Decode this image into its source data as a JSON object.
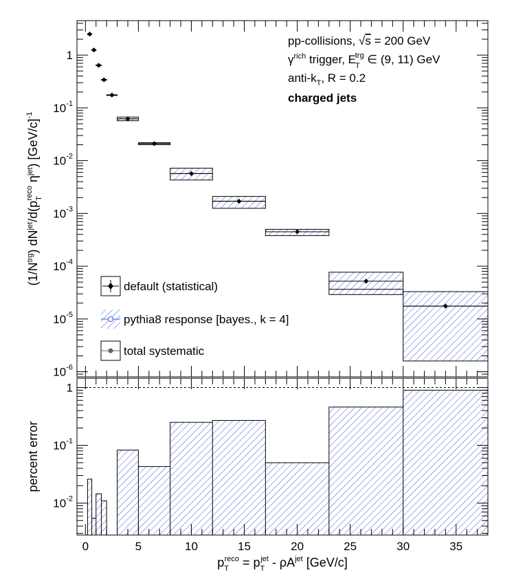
{
  "chart_data": [
    {
      "type": "scatter",
      "panel": "upper",
      "xlabel": "p_T^reco = p_T^jet - ρA^jet [GeV/c]",
      "ylabel": "(1/N^trg) dN^jet/d(p_T^reco η^jet) [GeV/c]^-1",
      "ylabel_parts": {
        "p1": "(1/N",
        "trg": "trg",
        "p2": ") dN",
        "jet1": "jet",
        "p3": "/d(p",
        "T": "T",
        "reco": "reco",
        "p4": " η",
        "jet2": "jet",
        "p5": ") [GeV/c]",
        "m1": "-1"
      },
      "xlim": [
        -0.8,
        38
      ],
      "ylim": [
        8e-07,
        4.5
      ],
      "yscale": "log",
      "yticks": [
        {
          "v": 1,
          "base": "1",
          "exp": ""
        },
        {
          "v": 0.1,
          "base": "10",
          "exp": "-1"
        },
        {
          "v": 0.01,
          "base": "10",
          "exp": "-2"
        },
        {
          "v": 0.001,
          "base": "10",
          "exp": "-3"
        },
        {
          "v": 0.0001,
          "base": "10",
          "exp": "-4"
        },
        {
          "v": 1e-05,
          "base": "10",
          "exp": "-5"
        },
        {
          "v": 1e-06,
          "base": "10",
          "exp": "-6"
        }
      ],
      "annotations": {
        "line1_a": "pp-collisions, ",
        "line1_sqrt": "√",
        "line1_s": "s",
        "line1_b": " = 200 GeV",
        "line2_gamma": "γ",
        "line2_rich": "rich",
        "line2_a": " trigger, E",
        "line2_T": "T",
        "line2_trg": "trg",
        "line2_b": " ∈ (9, 11) GeV",
        "line3_a": "anti-k",
        "line3_T": "T",
        "line3_b": ", R = 0.2",
        "line4": "charged jets"
      },
      "legend": {
        "placement": "bottom-left",
        "entries": [
          {
            "label": "default (statistical)"
          },
          {
            "label": "pythia8 response [bayes., k = 4]"
          },
          {
            "label": "total systematic"
          }
        ]
      },
      "points": [
        {
          "xlo": 0.2,
          "xhi": 0.6,
          "x": 0.4,
          "y": 2.5,
          "syslo": 2.45,
          "syshi": 2.55
        },
        {
          "xlo": 0.6,
          "xhi": 1.0,
          "x": 0.8,
          "y": 1.25,
          "syslo": 1.23,
          "syshi": 1.27
        },
        {
          "xlo": 1.0,
          "xhi": 1.5,
          "x": 1.25,
          "y": 0.64,
          "syslo": 0.63,
          "syshi": 0.65
        },
        {
          "xlo": 1.5,
          "xhi": 2.0,
          "x": 1.75,
          "y": 0.34,
          "syslo": 0.335,
          "syshi": 0.345
        },
        {
          "xlo": 2.0,
          "xhi": 3.0,
          "x": 2.5,
          "y": 0.175,
          "syslo": 0.173,
          "syshi": 0.177
        },
        {
          "xlo": 3.0,
          "xhi": 5.0,
          "x": 4.0,
          "y": 0.062,
          "syslo": 0.057,
          "syshi": 0.067
        },
        {
          "xlo": 5.0,
          "xhi": 8.0,
          "x": 6.5,
          "y": 0.021,
          "syslo": 0.0201,
          "syshi": 0.0219
        },
        {
          "xlo": 8.0,
          "xhi": 12.0,
          "x": 10.0,
          "y": 0.0057,
          "syslo": 0.0043,
          "syshi": 0.0072
        },
        {
          "xlo": 12.0,
          "xhi": 17.0,
          "x": 14.5,
          "y": 0.0017,
          "syslo": 0.00125,
          "syshi": 0.0021
        },
        {
          "xlo": 17.0,
          "xhi": 23.0,
          "x": 20.0,
          "y": 0.00045,
          "syslo": 0.00038,
          "syshi": 0.0005
        },
        {
          "xlo": 23.0,
          "xhi": 30.0,
          "x": 26.5,
          "y": 5.2e-05,
          "syslo": 2.9e-05,
          "syshi": 7.7e-05,
          "central": 3.65e-05
        },
        {
          "xlo": 30.0,
          "xhi": 38.0,
          "x": 34.0,
          "y": 1.75e-05,
          "syslo": 1.6e-06,
          "syshi": 3.3e-05
        }
      ]
    },
    {
      "type": "bar",
      "panel": "lower",
      "ylabel": "percent error",
      "xlabel_parts": {
        "p": "p",
        "T1": "T",
        "reco": "reco",
        "eq": " = p",
        "T2": "T",
        "jet": "jet",
        "rho": " - ρA",
        "jet2": "jet",
        "unit": " [GeV/c]"
      },
      "xlim": [
        -0.8,
        38
      ],
      "ylim": [
        0.0028,
        1.45
      ],
      "yscale": "log",
      "xticks": [
        {
          "v": 0,
          "label": "0"
        },
        {
          "v": 5,
          "label": "5"
        },
        {
          "v": 10,
          "label": "10"
        },
        {
          "v": 15,
          "label": "15"
        },
        {
          "v": 20,
          "label": "20"
        },
        {
          "v": 25,
          "label": "25"
        },
        {
          "v": 30,
          "label": "30"
        },
        {
          "v": 35,
          "label": "35"
        }
      ],
      "yticks": [
        {
          "v": 1,
          "base": "1",
          "exp": ""
        },
        {
          "v": 0.1,
          "base": "10",
          "exp": "-1"
        },
        {
          "v": 0.01,
          "base": "10",
          "exp": "-2"
        }
      ],
      "reference_line": 1,
      "bins": [
        {
          "xlo": 0.2,
          "xhi": 0.6,
          "value": 0.026
        },
        {
          "xlo": 0.6,
          "xhi": 1.0,
          "value": 0.0055
        },
        {
          "xlo": 1.0,
          "xhi": 1.5,
          "value": 0.0145
        },
        {
          "xlo": 1.5,
          "xhi": 2.0,
          "value": 0.011
        },
        {
          "xlo": 2.0,
          "xhi": 3.0,
          "value": 0.0
        },
        {
          "xlo": 3.0,
          "xhi": 5.0,
          "value": 0.083
        },
        {
          "xlo": 5.0,
          "xhi": 8.0,
          "value": 0.043
        },
        {
          "xlo": 8.0,
          "xhi": 12.0,
          "value": 0.25
        },
        {
          "xlo": 12.0,
          "xhi": 17.0,
          "value": 0.27
        },
        {
          "xlo": 17.0,
          "xhi": 23.0,
          "value": 0.05
        },
        {
          "xlo": 23.0,
          "xhi": 30.0,
          "value": 0.46
        },
        {
          "xlo": 30.0,
          "xhi": 38.0,
          "value": 0.9
        }
      ]
    }
  ],
  "colors": {
    "hatch": "#3b5bd9",
    "marker": "#000000",
    "systematic_marker": "#666666"
  }
}
